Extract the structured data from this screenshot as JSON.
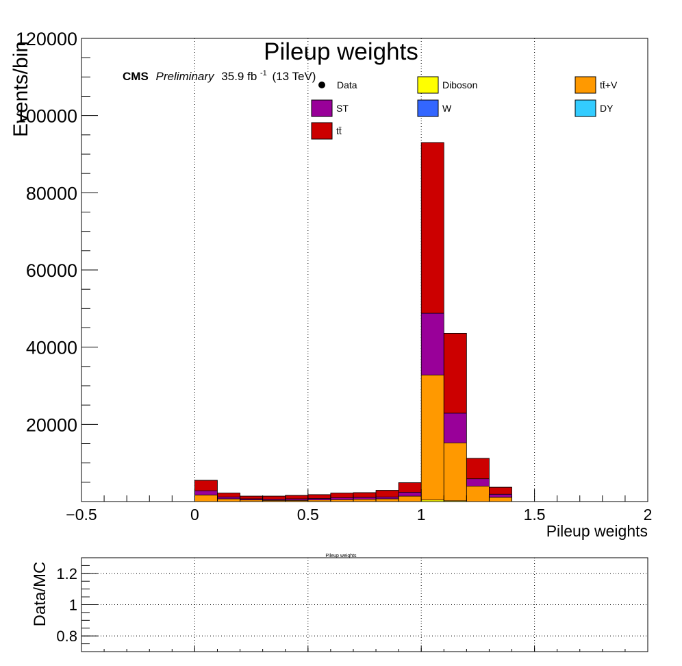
{
  "colors": {
    "ttbar": "#cc0000",
    "st": "#990099",
    "ttv": "#ff9900",
    "diboson": "#ffff00",
    "w": "#3366ff",
    "dy": "#33ccff",
    "data": "#000000"
  },
  "chart_data": {
    "type": "bar",
    "stacked": true,
    "title": "Pileup weights",
    "xlabel": "Pileup weights",
    "ylabel": "Events/bin",
    "xlim": [
      -0.5,
      2
    ],
    "ylim": [
      0,
      120000
    ],
    "grid": "vertical dotted",
    "bin_width": 0.1,
    "bin_edges_low": [
      0.0,
      0.1,
      0.2,
      0.3,
      0.4,
      0.5,
      0.6,
      0.7,
      0.8,
      0.9,
      1.0,
      1.1,
      1.2,
      1.3
    ],
    "x_ticks": [
      "−0.5",
      "0",
      "0.5",
      "1",
      "1.5",
      "2"
    ],
    "x_tick_values": [
      -0.5,
      0,
      0.5,
      1,
      1.5,
      2
    ],
    "y_ticks": [
      "20000",
      "40000",
      "60000",
      "80000",
      "100000",
      "120000"
    ],
    "y_tick_values": [
      20000,
      40000,
      60000,
      80000,
      100000,
      120000
    ],
    "series": [
      {
        "name": "Diboson",
        "key": "diboson",
        "values": [
          0,
          0,
          0,
          0,
          0,
          0,
          0,
          0,
          0,
          0,
          400,
          200,
          0,
          0
        ]
      },
      {
        "name": "tt̄+V",
        "key": "ttv",
        "values": [
          1700,
          700,
          400,
          300,
          300,
          400,
          500,
          600,
          700,
          1400,
          32400,
          15000,
          4000,
          1100
        ]
      },
      {
        "name": "ST",
        "key": "st",
        "values": [
          1100,
          500,
          300,
          300,
          400,
          400,
          500,
          500,
          500,
          1000,
          16000,
          7700,
          1900,
          800
        ]
      },
      {
        "name": "tt̄",
        "key": "ttbar",
        "values": [
          2700,
          1000,
          700,
          800,
          900,
          1000,
          1200,
          1200,
          1700,
          2500,
          44200,
          20700,
          5300,
          1800
        ]
      },
      {
        "name": "W",
        "key": "w",
        "values": [
          0,
          0,
          0,
          0,
          0,
          0,
          0,
          0,
          0,
          0,
          0,
          0,
          0,
          0
        ]
      },
      {
        "name": "DY",
        "key": "dy",
        "values": [
          0,
          0,
          0,
          0,
          0,
          0,
          0,
          0,
          0,
          0,
          0,
          0,
          0,
          0
        ]
      }
    ],
    "legend": {
      "placement": "top",
      "entries": [
        {
          "label": "Data",
          "key": "data",
          "marker": "dot"
        },
        {
          "label": "Diboson",
          "key": "diboson"
        },
        {
          "label": "tt̄+V",
          "key": "ttv"
        },
        {
          "label": "ST",
          "key": "st"
        },
        {
          "label": "W",
          "key": "w"
        },
        {
          "label": "DY",
          "key": "dy"
        },
        {
          "label": "tt̄",
          "key": "ttbar"
        }
      ]
    },
    "ratio_panel": {
      "title": "Pileup weights",
      "ylabel": "Data/MC",
      "ylim": [
        0.7,
        1.3
      ],
      "y_ticks": [
        "0.8",
        "1",
        "1.2"
      ],
      "y_tick_values": [
        0.8,
        1.0,
        1.2
      ],
      "grid": "dotted"
    }
  },
  "annotation": {
    "cms": "CMS",
    "preliminary": "Preliminary",
    "lumi": "35.9 fb",
    "lumi_exp": "-1",
    "energy": "(13 TeV)"
  }
}
